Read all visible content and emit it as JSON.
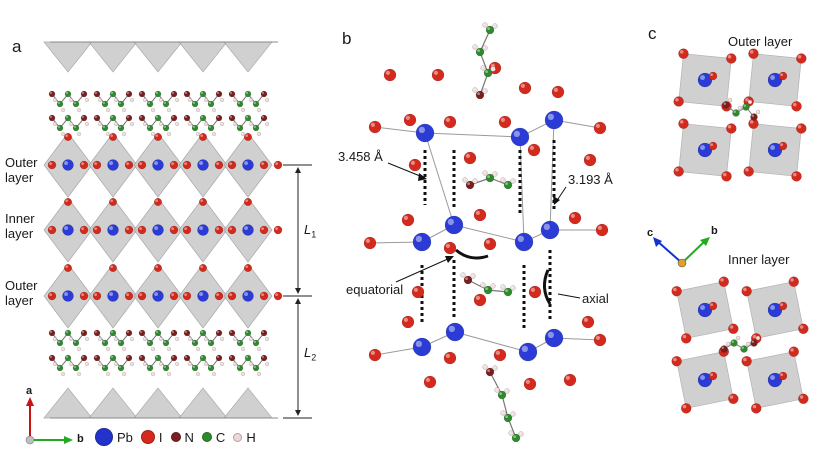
{
  "panels": {
    "a": {
      "letter": "a",
      "labels": {
        "outer_top": [
          "Outer",
          "layer"
        ],
        "inner": [
          "Inner",
          "layer"
        ],
        "outer_bottom": [
          "Outer",
          "layer"
        ],
        "l1": "L",
        "l1_sub": "1",
        "l2": "L",
        "l2_sub": "2"
      },
      "axes": {
        "vertical": "a",
        "horizontal": "b"
      }
    },
    "b": {
      "letter": "b",
      "distance_left": "3.458 Å",
      "distance_right": "3.193 Å",
      "angle_left": "equatorial",
      "angle_right": "axial"
    },
    "c": {
      "letter": "c",
      "outer_title": "Outer layer",
      "inner_title": "Inner layer",
      "axes": {
        "c": "c",
        "b": "b"
      }
    }
  },
  "legend": [
    {
      "symbol": "Pb",
      "color": "#2233cc",
      "size": 16
    },
    {
      "symbol": "I",
      "color": "#d42a1e",
      "size": 12
    },
    {
      "symbol": "N",
      "color": "#7a1f1f",
      "size": 8
    },
    {
      "symbol": "C",
      "color": "#2f8a2f",
      "size": 8
    },
    {
      "symbol": "H",
      "color": "#f0d6d6",
      "size": 7
    }
  ],
  "colors": {
    "pb": "#2a3bd6",
    "iodine": "#d42a1e",
    "nitrogen": "#7a1f1f",
    "carbon": "#2f8a2f",
    "hydrogen": "#f3dede",
    "octahedron": "#c8c8c8",
    "axis_red": "#cc1111",
    "axis_green": "#22aa22",
    "axis_blue": "#1133cc"
  }
}
